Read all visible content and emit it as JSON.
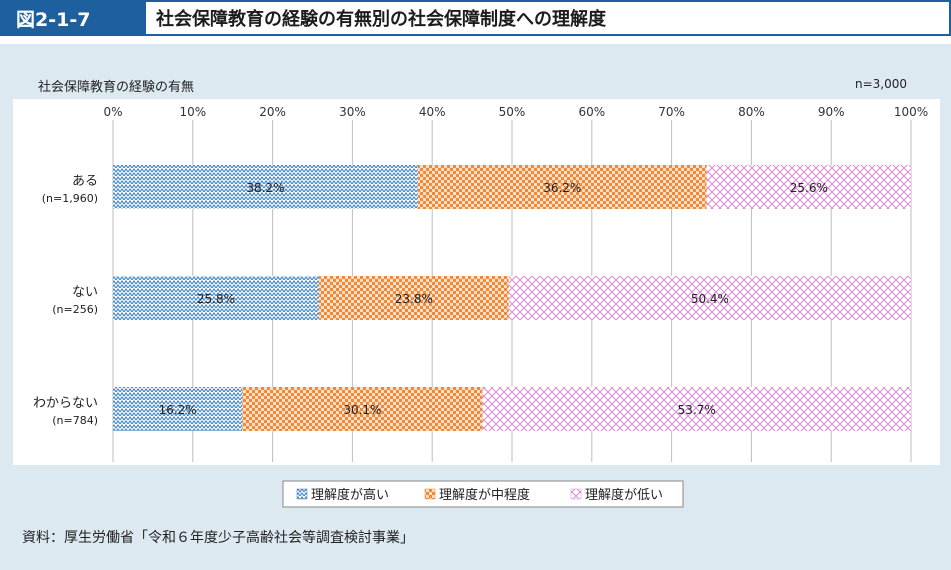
{
  "figure": {
    "label": "図2-1-7",
    "title": "社会保障教育の経験の有無別の社会保障制度への理解度"
  },
  "source": "資料：厚生労働省「令和６年度少子高齢社会等調査検討事業」",
  "chart_data": {
    "type": "bar",
    "orientation": "horizontal",
    "stacked": true,
    "percent_stacked": true,
    "category_axis_title": "社会保障教育の経験の有無",
    "sample_note": "n=3,000",
    "categories": [
      {
        "label": "ある",
        "n": "(n=1,960)"
      },
      {
        "label": "ない",
        "n": "(n=256)"
      },
      {
        "label": "わからない",
        "n": "(n=784)"
      }
    ],
    "series": [
      {
        "name": "理解度が高い",
        "values": [
          38.2,
          25.8,
          16.2
        ],
        "labels": [
          "38.2%",
          "25.8%",
          "16.2%"
        ],
        "color": "#3b83c4",
        "pattern": "wave"
      },
      {
        "name": "理解度が中程度",
        "values": [
          36.2,
          23.8,
          30.1
        ],
        "labels": [
          "36.2%",
          "23.8%",
          "30.1%"
        ],
        "color": "#f0893a",
        "pattern": "checker"
      },
      {
        "name": "理解度が低い",
        "values": [
          25.6,
          50.4,
          53.7
        ],
        "labels": [
          "25.6%",
          "50.4%",
          "53.7%"
        ],
        "color": "#d98ad6",
        "pattern": "crosshatch"
      }
    ],
    "xlim": [
      0,
      100
    ],
    "ticks": [
      "0%",
      "10%",
      "20%",
      "30%",
      "40%",
      "50%",
      "60%",
      "70%",
      "80%",
      "90%",
      "100%"
    ],
    "grid": true,
    "legend_position": "bottom"
  }
}
